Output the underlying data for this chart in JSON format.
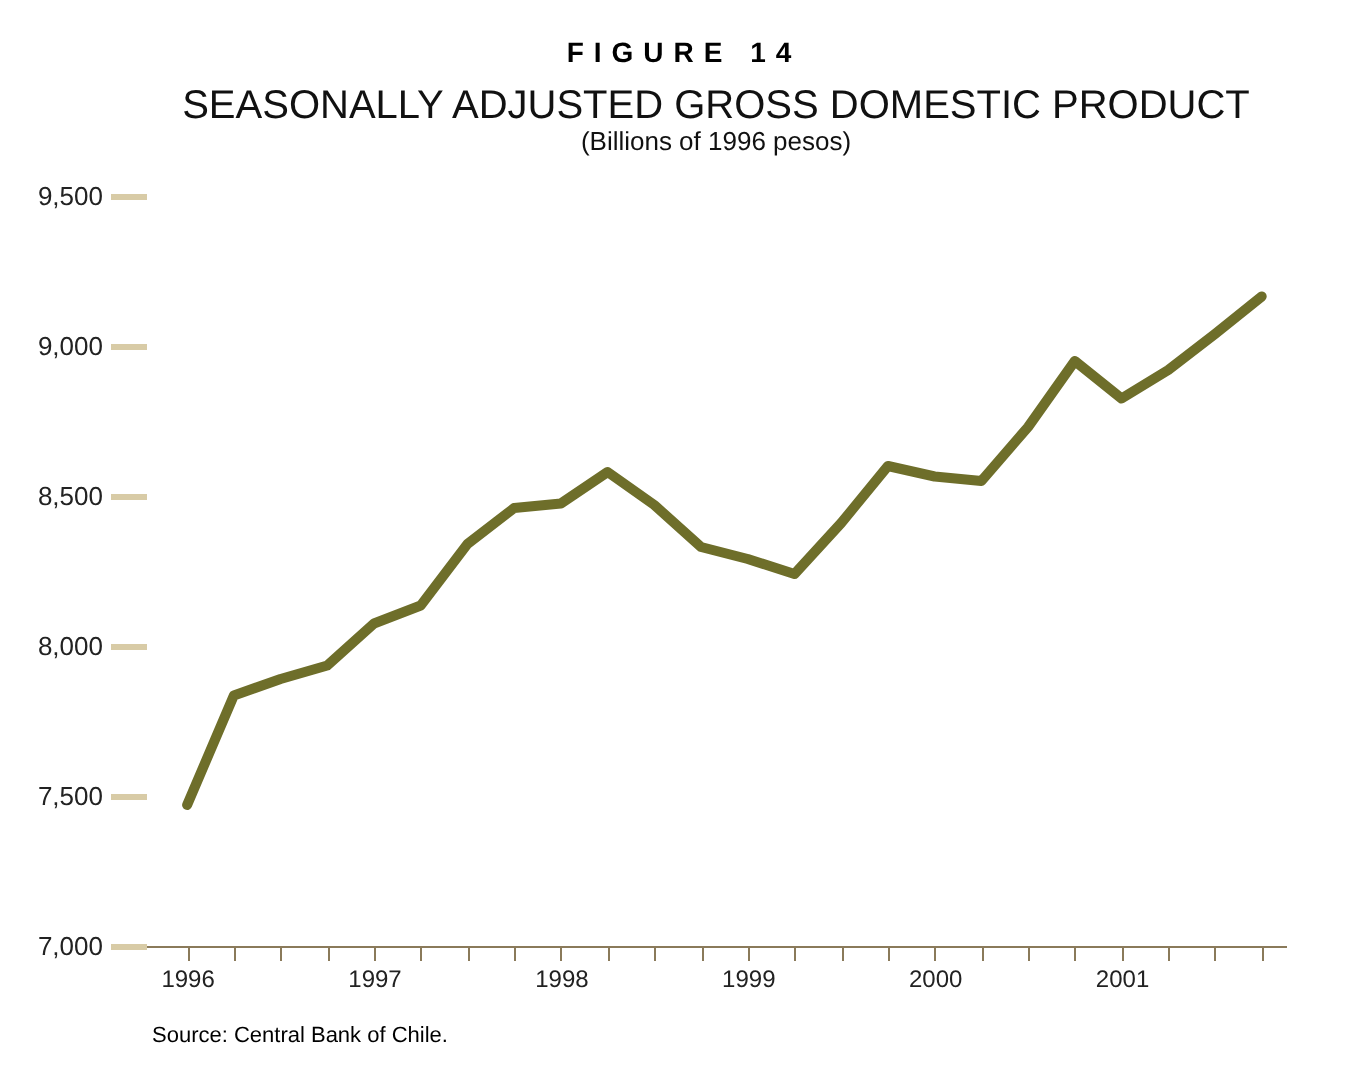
{
  "chart_data": {
    "type": "line",
    "title": "SEASONALLY ADJUSTED GROSS DOMESTIC PRODUCT",
    "subtitle": "(Billions of 1996 pesos)",
    "annotations": [
      "FIGURE 14",
      "Source: Central Bank of Chile."
    ],
    "x": [
      1996,
      1996.25,
      1996.5,
      1996.75,
      1997,
      1997.25,
      1997.5,
      1997.75,
      1998,
      1998.25,
      1998.5,
      1998.75,
      1999,
      1999.25,
      1999.5,
      1999.75,
      2000,
      2000.25,
      2000.5,
      2000.75,
      2001,
      2001.25,
      2001.5,
      2001.75
    ],
    "series": [
      {
        "color": "#6e6e2a",
        "values": [
          7470,
          7835,
          7890,
          7935,
          8075,
          8135,
          8340,
          8460,
          8475,
          8580,
          8470,
          8330,
          8290,
          8240,
          8410,
          8600,
          8565,
          8550,
          8730,
          8950,
          8825,
          8920,
          9040,
          9165
        ]
      }
    ],
    "xlim": [
      1995.78,
      2001.88
    ],
    "xticks": [
      1996,
      {
        "value": 1996.25,
        "label": null
      },
      {
        "value": 1996.5,
        "label": null
      },
      {
        "value": 1996.75,
        "label": null
      },
      1997,
      {
        "value": 1997.25,
        "label": null
      },
      {
        "value": 1997.5,
        "label": null
      },
      {
        "value": 1997.75,
        "label": null
      },
      1998,
      {
        "value": 1998.25,
        "label": null
      },
      {
        "value": 1998.5,
        "label": null
      },
      {
        "value": 1998.75,
        "label": null
      },
      1999,
      {
        "value": 1999.25,
        "label": null
      },
      {
        "value": 1999.5,
        "label": null
      },
      {
        "value": 1999.75,
        "label": null
      },
      2000,
      {
        "value": 2000.25,
        "label": null
      },
      {
        "value": 2000.5,
        "label": null
      },
      {
        "value": 2000.75,
        "label": null
      },
      2001,
      {
        "value": 2001.25,
        "label": null
      },
      {
        "value": 2001.5,
        "label": null
      },
      {
        "value": 2001.75,
        "label": null
      }
    ],
    "ylim": [
      7000,
      9500
    ],
    "yticks": [
      {
        "value": 7000,
        "label": "7,000"
      },
      {
        "value": 7500,
        "label": "7,500"
      },
      {
        "value": 8000,
        "label": "8,000"
      },
      {
        "value": 8500,
        "label": "8,500"
      },
      {
        "value": 9000,
        "label": "9,000"
      },
      {
        "value": 9500,
        "label": "9,500"
      }
    ],
    "grid": false,
    "legend": false,
    "marker": "none",
    "line_style": "solid"
  }
}
